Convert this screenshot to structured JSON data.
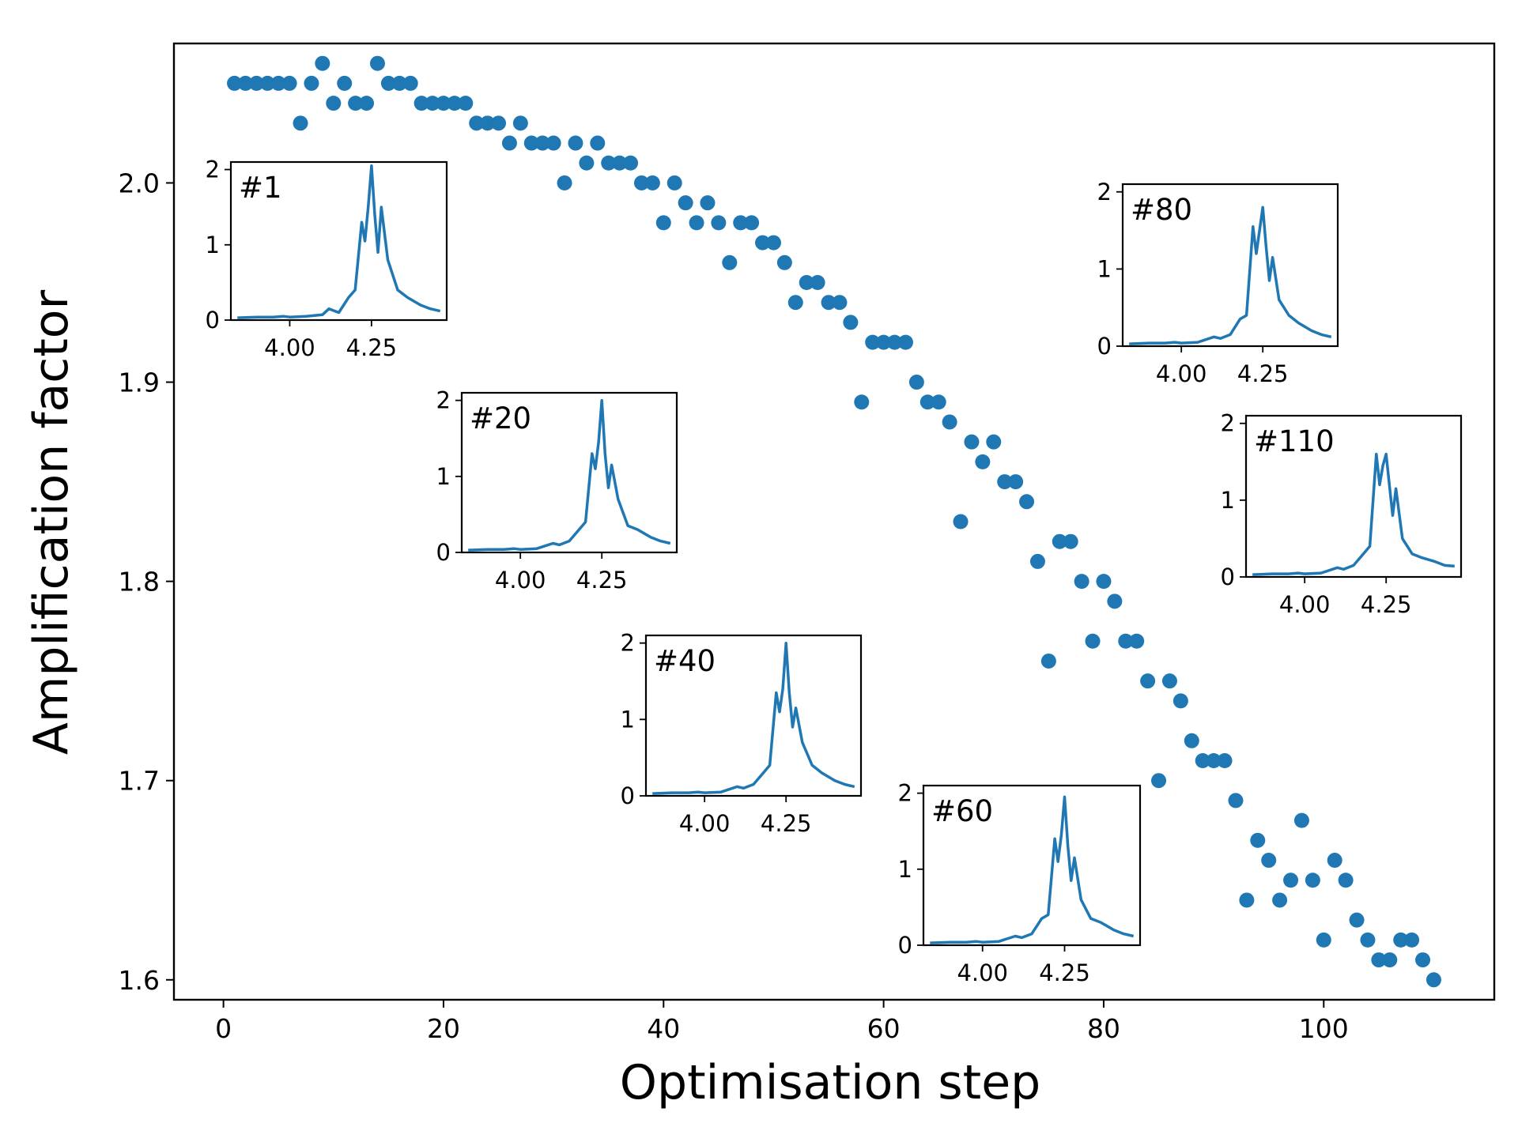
{
  "chart_data": {
    "type": "scatter",
    "title": "",
    "xlabel": "Optimisation step",
    "ylabel": "Amplification factor",
    "xlim": [
      -4.5,
      115.5
    ],
    "ylim": [
      1.59,
      2.07
    ],
    "xticks": [
      0,
      20,
      40,
      60,
      80,
      100
    ],
    "yticks": [
      1.6,
      1.7,
      1.8,
      1.9,
      2.0
    ],
    "x_tick_labels": [
      "0",
      "20",
      "40",
      "60",
      "80",
      "100"
    ],
    "y_tick_labels": [
      "1.6",
      "1.7",
      "1.8",
      "1.9",
      "2.0"
    ],
    "grid": false,
    "legend": "none",
    "marker_color": "#1f77b4",
    "series": [
      {
        "x": [
          1,
          2,
          3,
          4,
          5,
          6,
          7,
          8,
          9,
          10,
          11,
          12,
          13,
          14,
          15,
          16,
          17,
          18,
          19,
          20,
          21,
          22,
          23,
          24,
          25,
          26,
          27,
          28,
          29,
          30,
          31,
          32,
          33,
          34,
          35,
          36,
          37,
          38,
          39,
          40,
          41,
          42,
          43,
          44,
          45,
          46,
          47,
          48,
          49,
          50,
          51,
          52,
          53,
          54,
          55,
          56,
          57,
          58,
          59,
          60,
          61,
          62,
          63,
          64,
          65,
          66,
          67,
          68,
          69,
          70,
          71,
          72,
          73,
          74,
          75,
          76,
          77,
          78,
          79,
          80,
          81,
          82,
          83,
          84,
          85,
          86,
          87,
          88,
          89,
          90,
          91,
          92,
          93,
          94,
          95,
          96,
          97,
          98,
          99,
          100,
          101,
          102,
          103,
          104,
          105,
          106,
          107,
          108,
          109,
          110
        ],
        "y": [
          2.05,
          2.05,
          2.05,
          2.05,
          2.05,
          2.05,
          2.03,
          2.05,
          2.06,
          2.04,
          2.05,
          2.04,
          2.04,
          2.06,
          2.05,
          2.05,
          2.05,
          2.04,
          2.04,
          2.04,
          2.04,
          2.04,
          2.03,
          2.03,
          2.03,
          2.02,
          2.03,
          2.02,
          2.02,
          2.02,
          2.0,
          2.02,
          2.01,
          2.02,
          2.01,
          2.01,
          2.01,
          2.0,
          2.0,
          1.98,
          2.0,
          1.99,
          1.98,
          1.99,
          1.98,
          1.96,
          1.98,
          1.98,
          1.97,
          1.97,
          1.96,
          1.94,
          1.95,
          1.95,
          1.94,
          1.94,
          1.93,
          1.89,
          1.92,
          1.92,
          1.92,
          1.92,
          1.9,
          1.89,
          1.89,
          1.88,
          1.83,
          1.87,
          1.86,
          1.87,
          1.85,
          1.85,
          1.84,
          1.81,
          1.76,
          1.82,
          1.82,
          1.8,
          1.77,
          1.8,
          1.79,
          1.77,
          1.77,
          1.75,
          1.7,
          1.75,
          1.74,
          1.72,
          1.71,
          1.71,
          1.71,
          1.69,
          1.64,
          1.67,
          1.66,
          1.64,
          1.65,
          1.68,
          1.65,
          1.62,
          1.66,
          1.65,
          1.63,
          1.62,
          1.61,
          1.61,
          1.62,
          1.62,
          1.61,
          1.6
        ]
      }
    ],
    "insets": [
      {
        "label": "#1",
        "x_tick_labels": [
          "4.00",
          "4.25"
        ],
        "y_tick_labels": [
          "0",
          "1",
          "2"
        ],
        "xticks": [
          4.0,
          4.25
        ],
        "yticks": [
          0,
          1,
          2
        ],
        "xlim": [
          3.82,
          4.48
        ],
        "ylim": [
          0,
          2.1
        ],
        "x": [
          3.84,
          3.9,
          3.95,
          3.98,
          4.0,
          4.05,
          4.1,
          4.12,
          4.15,
          4.18,
          4.2,
          4.22,
          4.23,
          4.24,
          4.25,
          4.26,
          4.27,
          4.28,
          4.3,
          4.33,
          4.36,
          4.4,
          4.43,
          4.46
        ],
        "y": [
          0.03,
          0.04,
          0.04,
          0.05,
          0.04,
          0.05,
          0.07,
          0.15,
          0.1,
          0.3,
          0.4,
          1.3,
          1.05,
          1.5,
          2.05,
          1.4,
          0.9,
          1.5,
          0.8,
          0.4,
          0.3,
          0.2,
          0.15,
          0.12
        ]
      },
      {
        "label": "#20",
        "x_tick_labels": [
          "4.00",
          "4.25"
        ],
        "y_tick_labels": [
          "0",
          "1",
          "2"
        ],
        "xticks": [
          4.0,
          4.25
        ],
        "yticks": [
          0,
          1,
          2
        ],
        "xlim": [
          3.82,
          4.48
        ],
        "ylim": [
          0,
          2.1
        ],
        "x": [
          3.84,
          3.9,
          3.95,
          3.98,
          4.0,
          4.05,
          4.1,
          4.12,
          4.15,
          4.18,
          4.2,
          4.22,
          4.23,
          4.24,
          4.25,
          4.26,
          4.27,
          4.28,
          4.3,
          4.33,
          4.36,
          4.4,
          4.43,
          4.46
        ],
        "y": [
          0.03,
          0.04,
          0.04,
          0.05,
          0.04,
          0.05,
          0.12,
          0.1,
          0.15,
          0.3,
          0.4,
          1.3,
          1.1,
          1.45,
          2.0,
          1.3,
          0.85,
          1.15,
          0.7,
          0.35,
          0.3,
          0.2,
          0.15,
          0.12
        ]
      },
      {
        "label": "#40",
        "x_tick_labels": [
          "4.00",
          "4.25"
        ],
        "y_tick_labels": [
          "0",
          "1",
          "2"
        ],
        "xticks": [
          4.0,
          4.25
        ],
        "yticks": [
          0,
          1,
          2
        ],
        "xlim": [
          3.82,
          4.48
        ],
        "ylim": [
          0,
          2.1
        ],
        "x": [
          3.84,
          3.9,
          3.95,
          3.98,
          4.0,
          4.05,
          4.1,
          4.12,
          4.15,
          4.18,
          4.2,
          4.22,
          4.23,
          4.24,
          4.25,
          4.26,
          4.27,
          4.28,
          4.3,
          4.33,
          4.36,
          4.4,
          4.43,
          4.46
        ],
        "y": [
          0.03,
          0.04,
          0.04,
          0.05,
          0.04,
          0.05,
          0.12,
          0.1,
          0.15,
          0.3,
          0.4,
          1.35,
          1.1,
          1.4,
          2.0,
          1.35,
          0.9,
          1.15,
          0.7,
          0.4,
          0.3,
          0.2,
          0.15,
          0.12
        ]
      },
      {
        "label": "#60",
        "x_tick_labels": [
          "4.00",
          "4.25"
        ],
        "y_tick_labels": [
          "0",
          "1",
          "2"
        ],
        "xticks": [
          4.0,
          4.25
        ],
        "yticks": [
          0,
          1,
          2
        ],
        "xlim": [
          3.82,
          4.48
        ],
        "ylim": [
          0,
          2.1
        ],
        "x": [
          3.84,
          3.9,
          3.95,
          3.98,
          4.0,
          4.05,
          4.1,
          4.12,
          4.15,
          4.18,
          4.2,
          4.22,
          4.23,
          4.24,
          4.25,
          4.26,
          4.27,
          4.28,
          4.3,
          4.33,
          4.36,
          4.4,
          4.43,
          4.46
        ],
        "y": [
          0.03,
          0.04,
          0.04,
          0.05,
          0.04,
          0.05,
          0.12,
          0.1,
          0.15,
          0.35,
          0.4,
          1.4,
          1.1,
          1.45,
          1.95,
          1.3,
          0.85,
          1.15,
          0.6,
          0.35,
          0.3,
          0.2,
          0.15,
          0.12
        ]
      },
      {
        "label": "#80",
        "x_tick_labels": [
          "4.00",
          "4.25"
        ],
        "y_tick_labels": [
          "0",
          "1",
          "2"
        ],
        "xticks": [
          4.0,
          4.25
        ],
        "yticks": [
          0,
          1,
          2
        ],
        "xlim": [
          3.82,
          4.48
        ],
        "ylim": [
          0,
          2.1
        ],
        "x": [
          3.84,
          3.9,
          3.95,
          3.98,
          4.0,
          4.05,
          4.1,
          4.12,
          4.15,
          4.18,
          4.2,
          4.22,
          4.23,
          4.24,
          4.25,
          4.26,
          4.27,
          4.28,
          4.3,
          4.33,
          4.36,
          4.4,
          4.43,
          4.46
        ],
        "y": [
          0.03,
          0.04,
          0.04,
          0.05,
          0.04,
          0.05,
          0.12,
          0.1,
          0.15,
          0.35,
          0.4,
          1.55,
          1.2,
          1.5,
          1.8,
          1.3,
          0.85,
          1.15,
          0.6,
          0.4,
          0.3,
          0.2,
          0.15,
          0.12
        ]
      },
      {
        "label": "#110",
        "x_tick_labels": [
          "4.00",
          "4.25"
        ],
        "y_tick_labels": [
          "0",
          "1",
          "2"
        ],
        "xticks": [
          4.0,
          4.25
        ],
        "yticks": [
          0,
          1,
          2
        ],
        "xlim": [
          3.82,
          4.48
        ],
        "ylim": [
          0,
          2.1
        ],
        "x": [
          3.84,
          3.9,
          3.95,
          3.98,
          4.0,
          4.05,
          4.1,
          4.12,
          4.15,
          4.18,
          4.2,
          4.22,
          4.23,
          4.24,
          4.25,
          4.26,
          4.27,
          4.28,
          4.3,
          4.33,
          4.36,
          4.4,
          4.43,
          4.46
        ],
        "y": [
          0.03,
          0.04,
          0.04,
          0.05,
          0.04,
          0.05,
          0.12,
          0.1,
          0.15,
          0.3,
          0.4,
          1.6,
          1.2,
          1.45,
          1.6,
          1.2,
          0.8,
          1.15,
          0.5,
          0.3,
          0.25,
          0.2,
          0.15,
          0.14
        ]
      }
    ]
  }
}
